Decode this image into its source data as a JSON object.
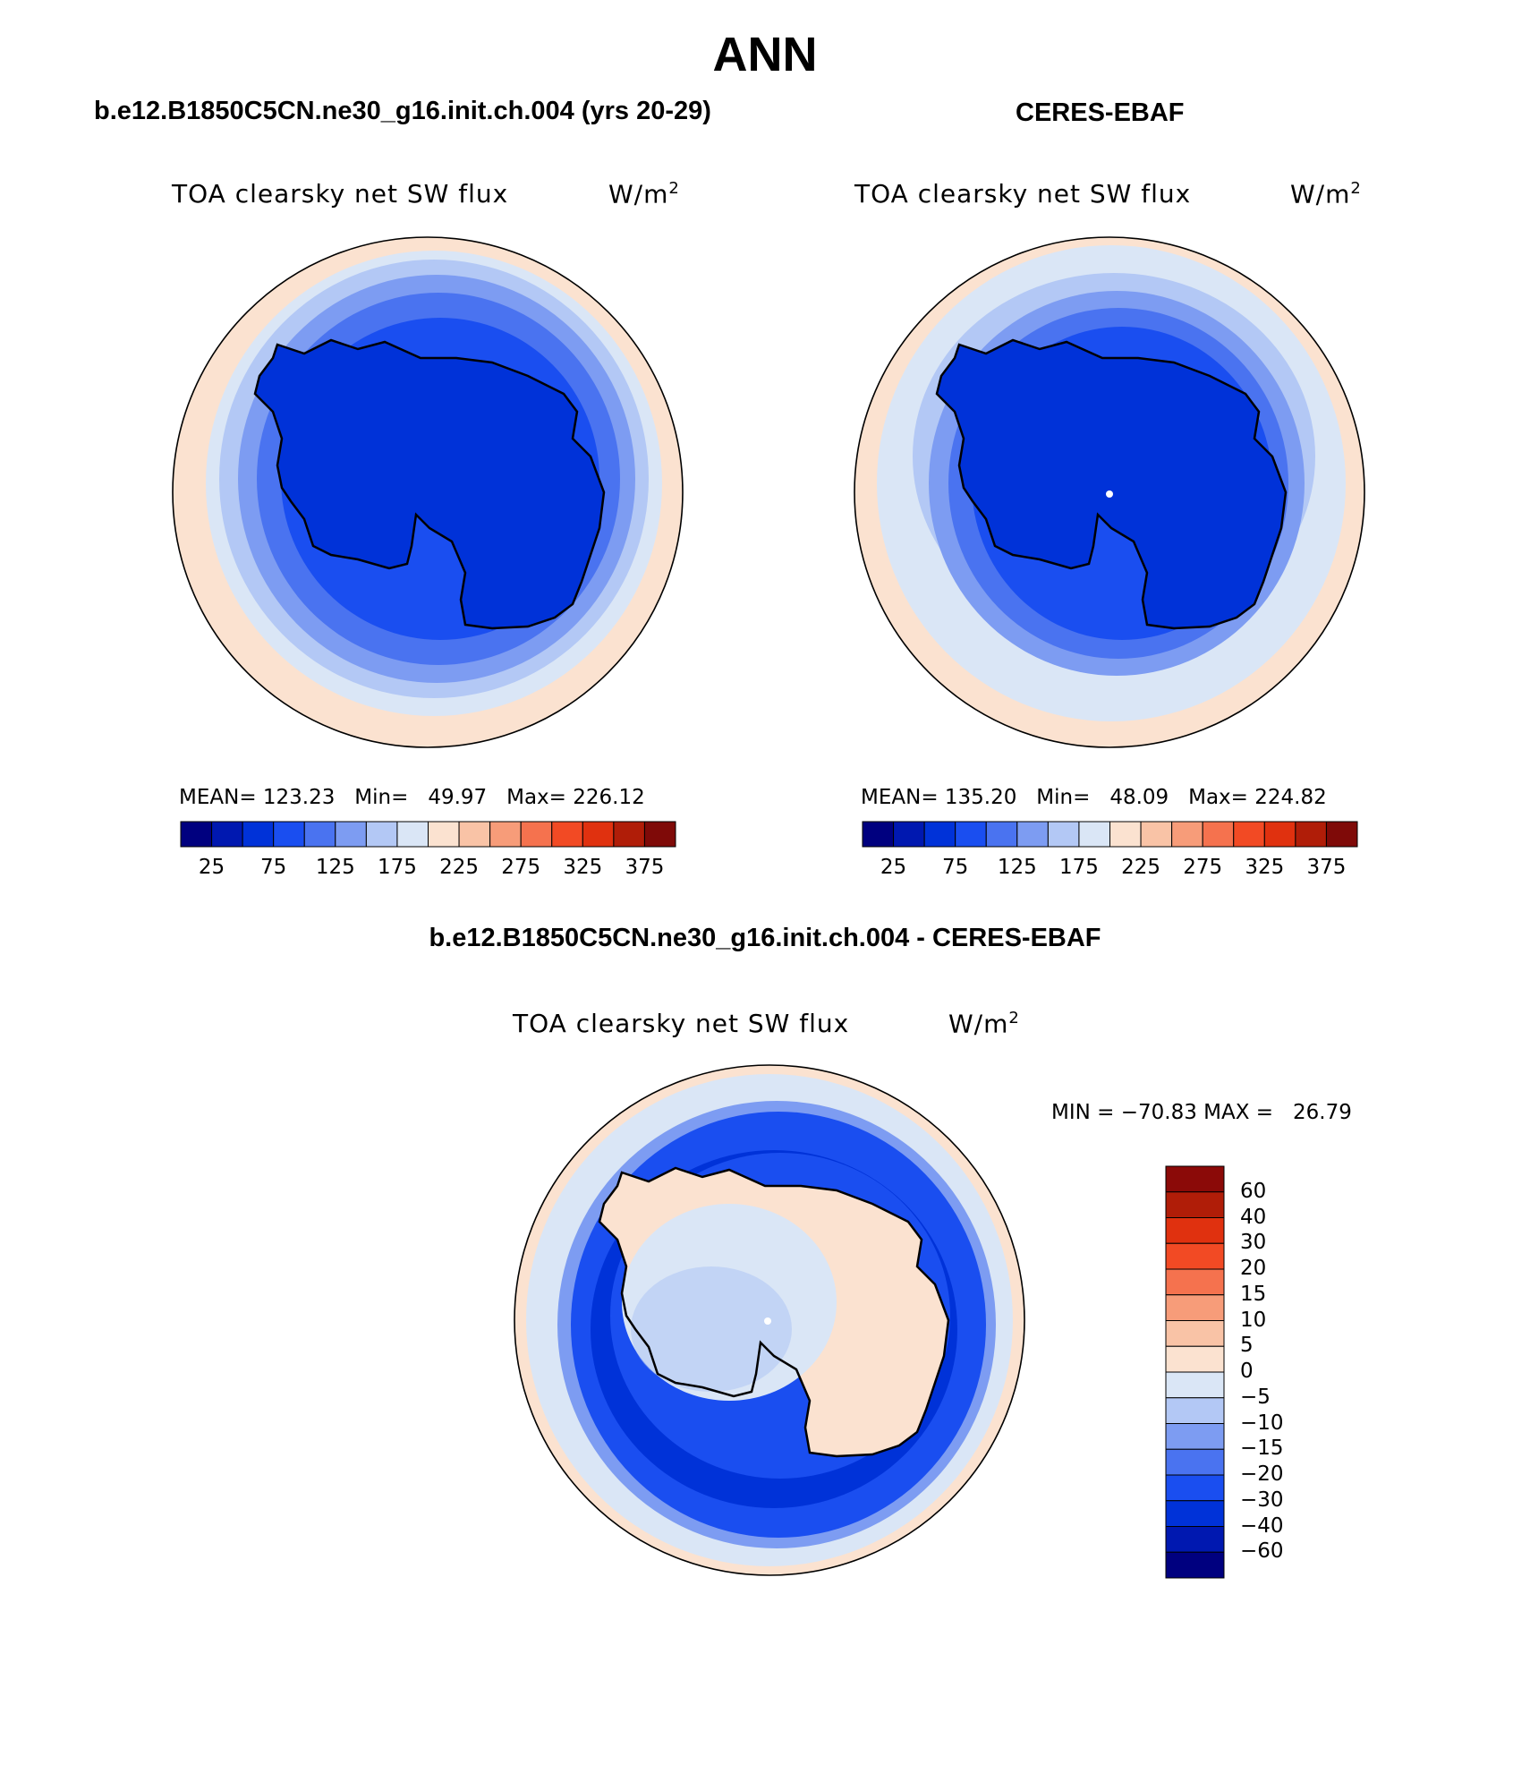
{
  "title": "ANN",
  "panels": [
    {
      "case_name": "b.e12.B1850C5CN.ne30_g16.init.ch.004 (yrs 20-29)",
      "variable": "TOA clearsky net SW flux",
      "units": "W/m",
      "units_exp": "2",
      "stats": "MEAN= 123.23   Min=   49.97   Max= 226.12",
      "region": "Antarctica, South Polar Stereographic"
    },
    {
      "case_name": "CERES-EBAF",
      "variable": "TOA clearsky net SW flux",
      "units": "W/m",
      "units_exp": "2",
      "stats": "MEAN= 135.20   Min=   48.09   Max= 224.82",
      "region": "Antarctica, South Polar Stereographic"
    }
  ],
  "colorbar_abs": {
    "colors": [
      "#00007f",
      "#0018b0",
      "#0032d8",
      "#1a4ef0",
      "#4a73f0",
      "#7d9cf2",
      "#b3c8f5",
      "#dae6f6",
      "#fbe2d0",
      "#f9c3a6",
      "#f79c79",
      "#f5724e",
      "#f24a24",
      "#e0310f",
      "#b01d08",
      "#7f0a08"
    ],
    "tick_labels": [
      "25",
      "75",
      "125",
      "175",
      "225",
      "275",
      "325",
      "375"
    ]
  },
  "diff_panel": {
    "title": "b.e12.B1850C5CN.ne30_g16.init.ch.004 - CERES-EBAF",
    "variable": "TOA clearsky net SW flux",
    "units": "W/m",
    "units_exp": "2",
    "minmax": "MIN = −70.83 MAX =   26.79"
  },
  "colorbar_diff": {
    "colors": [
      "#8b0a08",
      "#b01d08",
      "#e0310f",
      "#f24a24",
      "#f5724e",
      "#f79c79",
      "#f9c3a6",
      "#fbe2d0",
      "#dae6f6",
      "#b3c8f5",
      "#7d9cf2",
      "#4a73f0",
      "#1a4ef0",
      "#0032d8",
      "#0018b0",
      "#00007f"
    ],
    "tick_labels": [
      "60",
      "40",
      "30",
      "20",
      "15",
      "10",
      "5",
      "0",
      "−5",
      "−10",
      "−15",
      "−20",
      "−30",
      "−40",
      "−60"
    ]
  }
}
